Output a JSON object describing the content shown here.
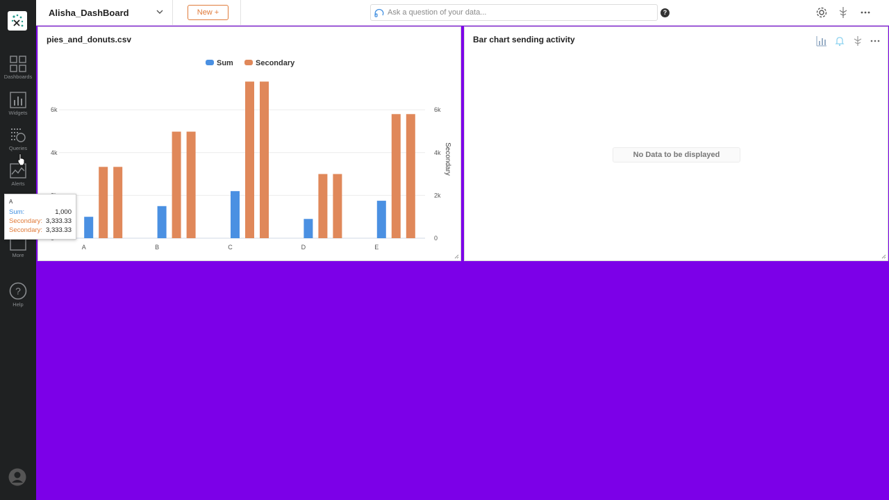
{
  "sidebar": {
    "items": [
      {
        "label": "Dashboards",
        "icon": "dashboards-icon"
      },
      {
        "label": "Widgets",
        "icon": "widgets-icon"
      },
      {
        "label": "Queries",
        "icon": "queries-icon"
      },
      {
        "label": "Alerts",
        "icon": "alerts-icon"
      },
      {
        "label": "More",
        "icon": "more-icon"
      },
      {
        "label": "Help",
        "icon": "help-icon"
      }
    ]
  },
  "topbar": {
    "dashboard_name": "Alisha_DashBoard",
    "new_label": "New +",
    "ask_placeholder": "Ask a question of your data...",
    "help_symbol": "?"
  },
  "panels": {
    "left": {
      "title": "pies_and_donuts.csv"
    },
    "right": {
      "title": "Bar chart sending activity",
      "empty_message": "No Data to be displayed"
    }
  },
  "tooltip": {
    "category": "A",
    "rows": [
      {
        "key": "Sum:",
        "value": "1,000",
        "series": "Sum"
      },
      {
        "key": "Secondary:",
        "value": "3,333.33",
        "series": "Secondary"
      },
      {
        "key": "Secondary:",
        "value": "3,333.33",
        "series": "Secondary"
      }
    ]
  },
  "colors": {
    "sum": "#4a90e2",
    "secondary": "#e0885a",
    "background": "#7c00e8",
    "sidebar": "#1f2122",
    "accent": "#e07b3a"
  },
  "chart_data": {
    "type": "bar",
    "categories": [
      "A",
      "B",
      "C",
      "D",
      "E"
    ],
    "series": [
      {
        "name": "Sum",
        "axis": "left",
        "values": [
          1000,
          1500,
          2200,
          900,
          1750
        ]
      },
      {
        "name": "Secondary",
        "axis": "right",
        "values": [
          3333.33,
          4980,
          7320,
          3000,
          5800
        ]
      },
      {
        "name": "Secondary",
        "axis": "right",
        "values": [
          3333.33,
          4980,
          7320,
          3000,
          5800
        ]
      }
    ],
    "legend": [
      "Sum",
      "Secondary"
    ],
    "legend_position": "top-center",
    "y_ticks": [
      "0",
      "2k",
      "4k",
      "6k"
    ],
    "y_tick_values": [
      0,
      2000,
      4000,
      6000
    ],
    "y2_label": "Secondary",
    "ylim": [
      0,
      7400
    ],
    "grid": true
  }
}
